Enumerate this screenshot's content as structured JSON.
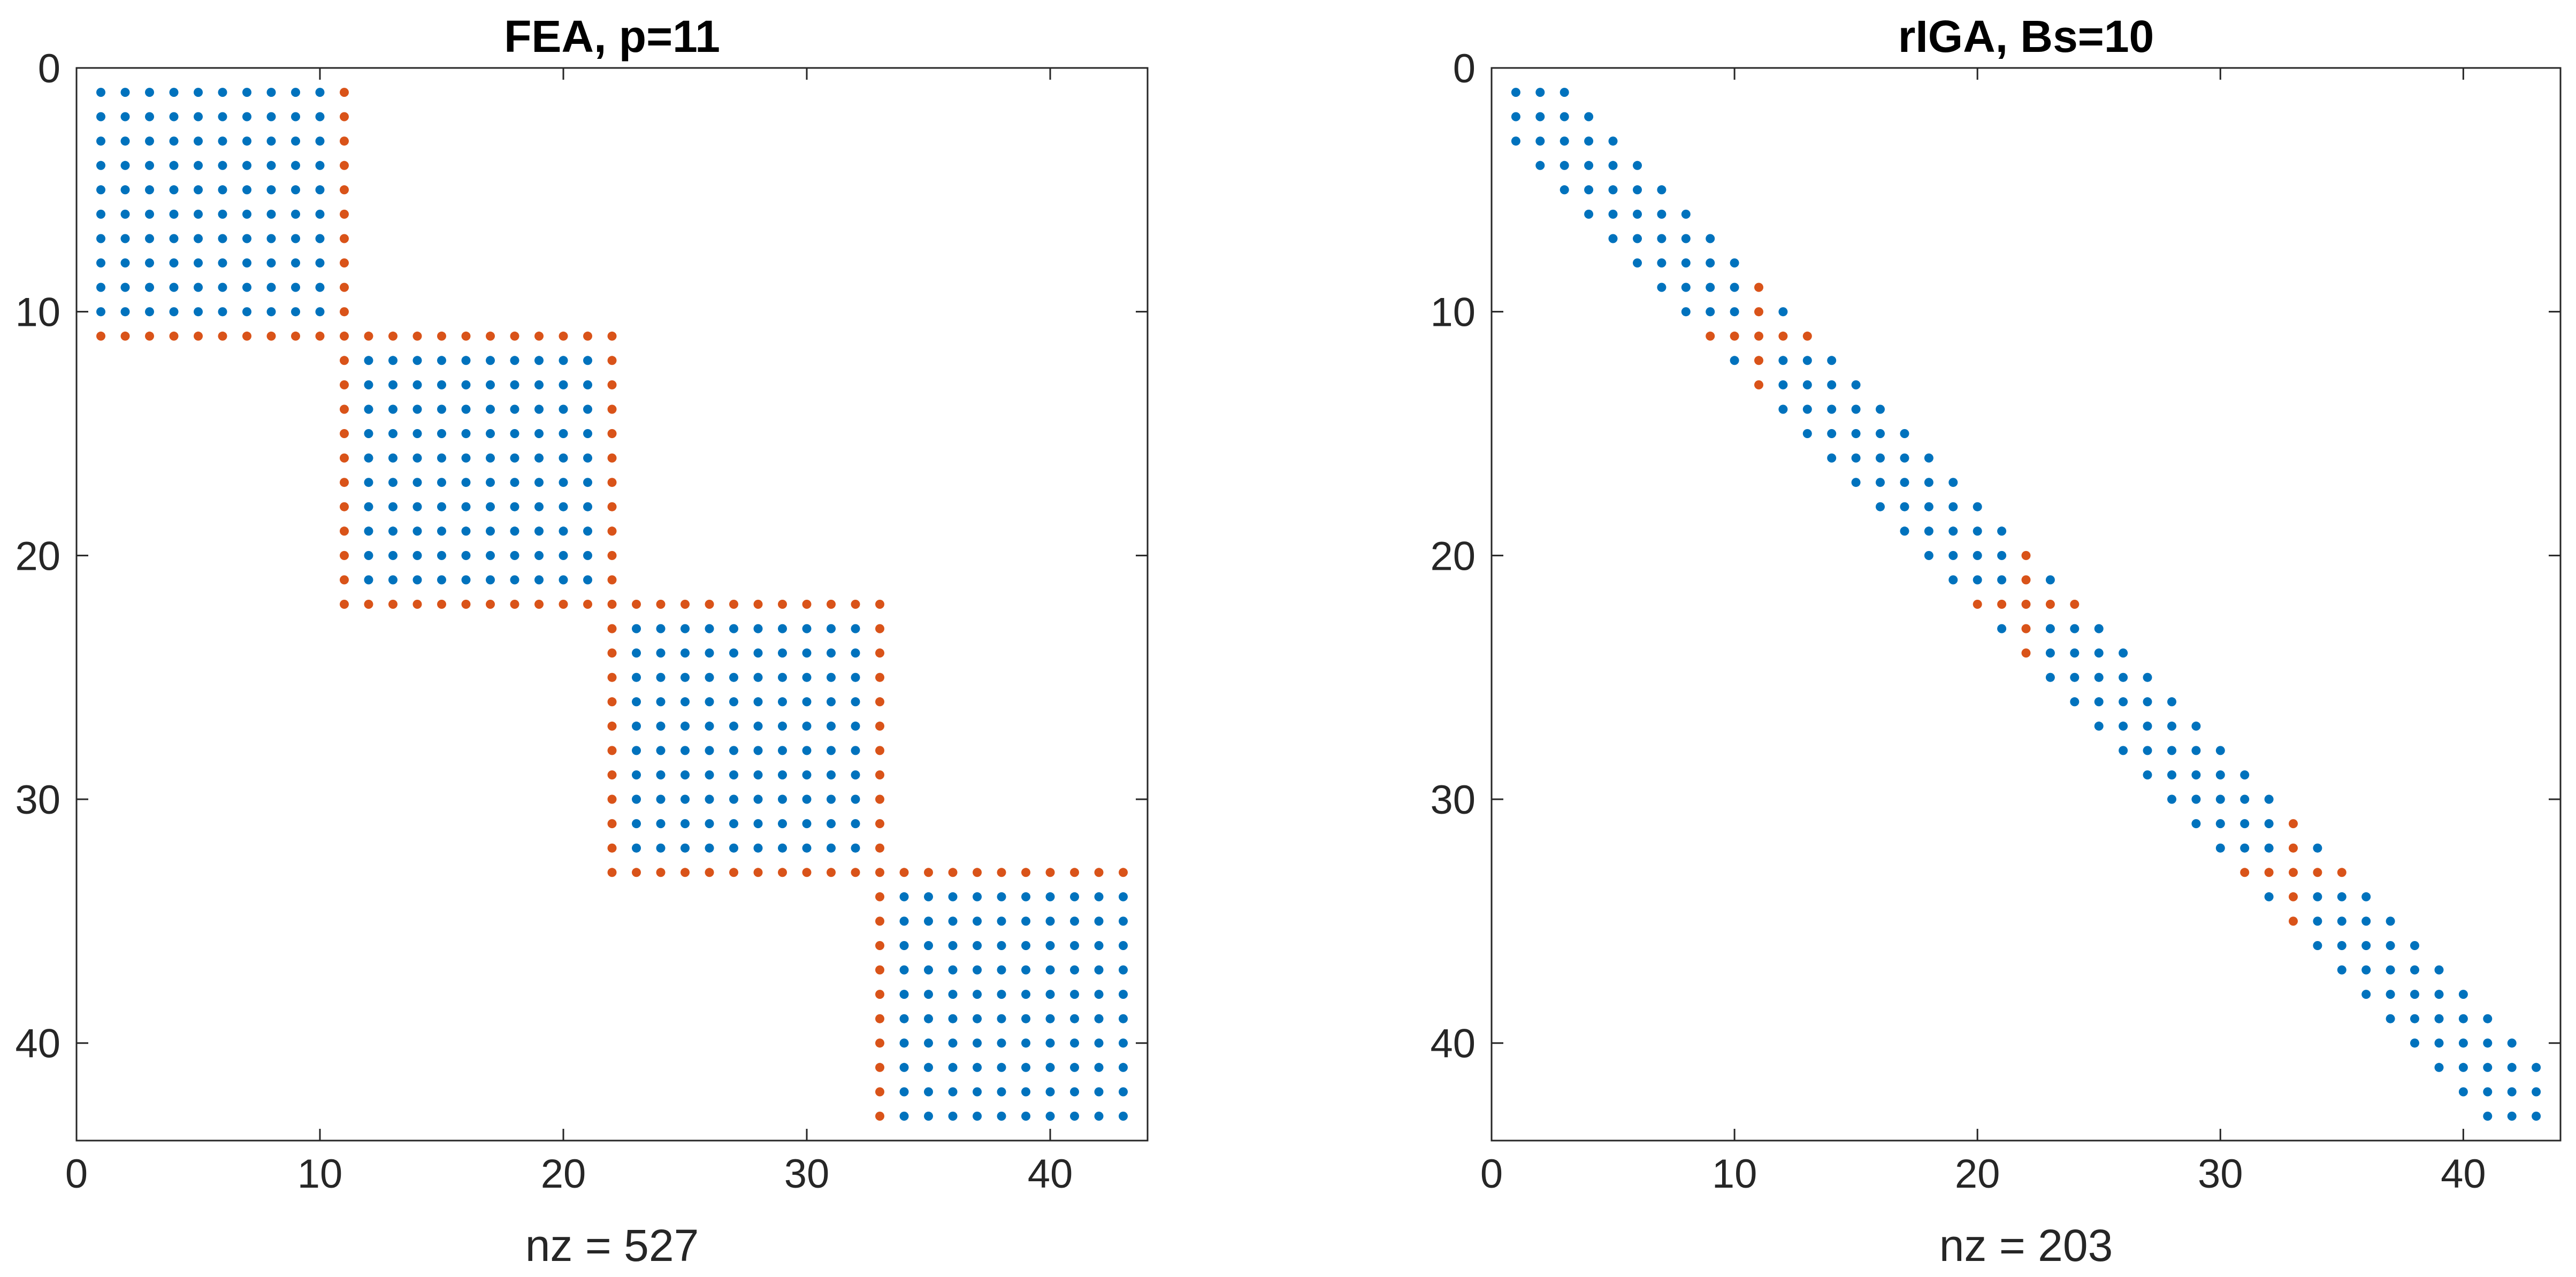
{
  "colors": {
    "interior": "#0072BD",
    "interface": "#D95319",
    "axes": "#262626"
  },
  "chart_data": [
    {
      "type": "scatter",
      "subtype": "spy",
      "title": "FEA, p=11",
      "xlabel": "nz = 527",
      "ylabel": "",
      "matrix_size": 43,
      "xlim": [
        0,
        44
      ],
      "ylim": [
        44,
        0
      ],
      "xticks": [
        "0",
        "10",
        "20",
        "30",
        "40"
      ],
      "yticks": [
        "0",
        "10",
        "20",
        "30",
        "40"
      ],
      "structure": "block-diagonal",
      "blocks": [
        {
          "interior_rows": [
            1,
            10
          ],
          "interior_cols": [
            1,
            10
          ],
          "interface_index": 11
        },
        {
          "interior_rows": [
            12,
            21
          ],
          "interior_cols": [
            12,
            21
          ],
          "interface_start": 11,
          "interface_end": 22
        },
        {
          "interior_rows": [
            23,
            32
          ],
          "interior_cols": [
            23,
            32
          ],
          "interface_start": 22,
          "interface_end": 33
        },
        {
          "interior_rows": [
            34,
            43
          ],
          "interior_cols": [
            34,
            43
          ],
          "interface_start": 33
        }
      ]
    },
    {
      "type": "scatter",
      "subtype": "spy",
      "title": "rIGA, Bs=10",
      "xlabel": "nz = 203",
      "ylabel": "",
      "matrix_size": 43,
      "xlim": [
        0,
        44
      ],
      "ylim": [
        44,
        0
      ],
      "xticks": [
        "0",
        "10",
        "20",
        "30",
        "40"
      ],
      "yticks": [
        "0",
        "10",
        "20",
        "30",
        "40"
      ],
      "structure": "banded",
      "half_bandwidth": 2,
      "interface_indices": [
        11,
        22,
        33
      ]
    }
  ]
}
